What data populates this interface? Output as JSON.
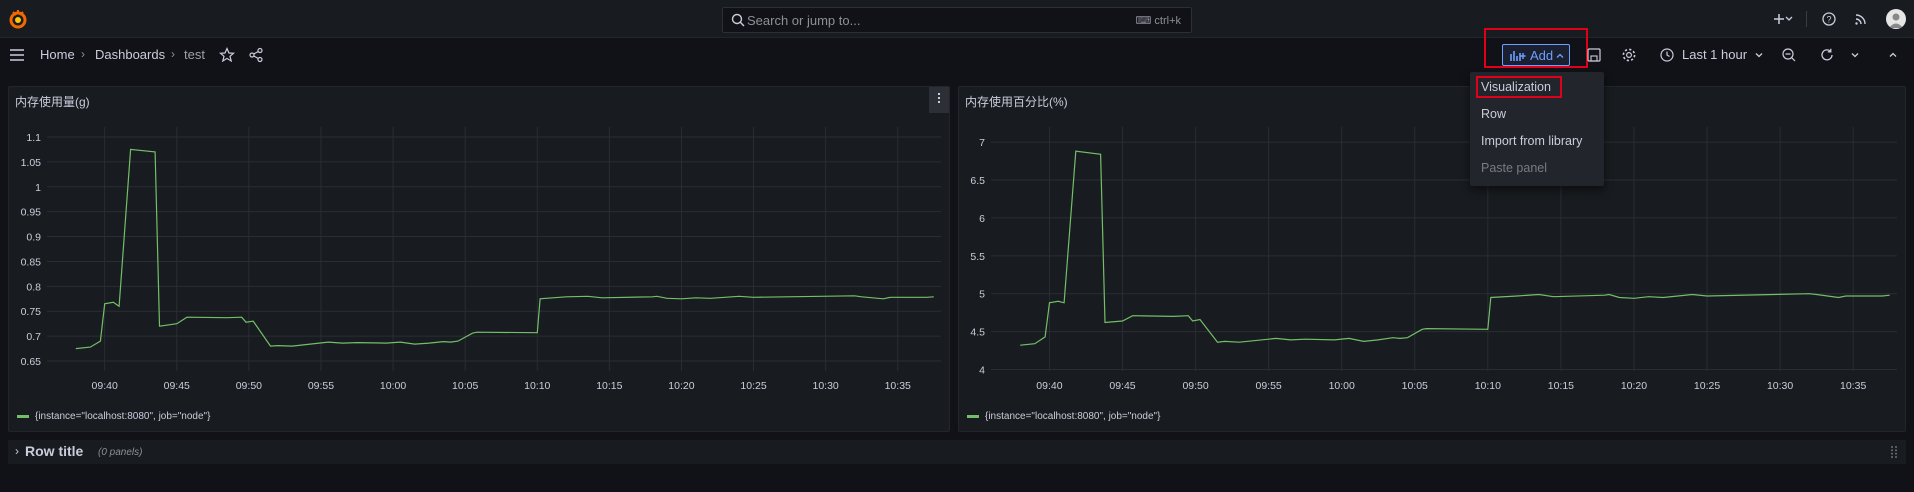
{
  "search": {
    "placeholder": "Search or jump to...",
    "shortcut": "ctrl+k"
  },
  "breadcrumb": {
    "home": "Home",
    "dashboards": "Dashboards",
    "current": "test"
  },
  "toolbar": {
    "add_label": "Add",
    "time_range": "Last 1 hour"
  },
  "add_menu": {
    "items": [
      "Visualization",
      "Row",
      "Import from library",
      "Paste panel"
    ]
  },
  "panels": [
    {
      "title": "内存使用量(g)",
      "legend": "{instance=\"localhost:8080\", job=\"node\"}",
      "chart_data": {
        "type": "line",
        "ylim": [
          0.63,
          1.12
        ],
        "yticks": [
          "1.1",
          "1.05",
          "1",
          "0.95",
          "0.9",
          "0.85",
          "0.8",
          "0.75",
          "0.7",
          "0.65"
        ],
        "ytick_values": [
          1.1,
          1.05,
          1.0,
          0.95,
          0.9,
          0.85,
          0.8,
          0.75,
          0.7,
          0.65
        ],
        "xticks": [
          "09:40",
          "09:45",
          "09:50",
          "09:55",
          "10:00",
          "10:05",
          "10:10",
          "10:15",
          "10:20",
          "10:25",
          "10:30",
          "10:35"
        ],
        "series": [
          {
            "color": "#73bf69",
            "x": [
              38,
              39,
              39.7,
              40,
              40.6,
              41,
              41.8,
              43.5,
              43.8,
              45,
              45.7,
              48.5,
              49.5,
              49.8,
              50.3,
              51.5,
              52,
              53,
              55.5,
              56.5,
              57.5,
              59.5,
              60.5,
              61.5,
              62.5,
              63.5,
              64,
              64.5,
              65.5,
              65.8,
              70,
              70.2,
              72,
              73.5,
              74.5,
              78,
              78.3,
              79,
              80,
              81,
              82,
              84,
              85,
              92,
              92.5,
              94,
              94.5,
              97,
              97.5
            ],
            "y": [
              0.675,
              0.678,
              0.69,
              0.765,
              0.768,
              0.76,
              1.075,
              1.07,
              0.72,
              0.725,
              0.738,
              0.737,
              0.738,
              0.728,
              0.73,
              0.68,
              0.681,
              0.68,
              0.688,
              0.686,
              0.687,
              0.686,
              0.688,
              0.684,
              0.686,
              0.689,
              0.688,
              0.69,
              0.706,
              0.708,
              0.707,
              0.775,
              0.779,
              0.78,
              0.777,
              0.779,
              0.78,
              0.776,
              0.775,
              0.777,
              0.776,
              0.78,
              0.778,
              0.781,
              0.779,
              0.775,
              0.778,
              0.778,
              0.779
            ]
          }
        ]
      }
    },
    {
      "title": "内存使用百分比(%)",
      "legend": "{instance=\"localhost:8080\", job=\"node\"}",
      "chart_data": {
        "type": "line",
        "ylim": [
          3.98,
          7.2
        ],
        "yticks": [
          "7",
          "6.5",
          "6",
          "5.5",
          "5",
          "4.5",
          "4"
        ],
        "ytick_values": [
          7,
          6.5,
          6,
          5.5,
          5,
          4.5,
          4
        ],
        "xticks": [
          "09:40",
          "09:45",
          "09:50",
          "09:55",
          "10:00",
          "10:05",
          "10:10",
          "10:15",
          "10:20",
          "10:25",
          "10:30",
          "10:35"
        ],
        "series": [
          {
            "color": "#73bf69",
            "x": [
              38,
              39,
              39.7,
              40,
              40.6,
              41,
              41.8,
              43.5,
              43.8,
              45,
              45.7,
              48.5,
              49.5,
              49.8,
              50.3,
              51.5,
              52,
              53,
              55.5,
              56.5,
              57.5,
              59.5,
              60.5,
              61.5,
              62.5,
              63.5,
              64,
              64.5,
              65.5,
              65.8,
              70,
              70.2,
              72,
              73.5,
              74.5,
              78,
              78.3,
              79,
              80,
              81,
              82,
              84,
              85,
              92,
              92.5,
              94,
              94.5,
              97,
              97.5
            ],
            "y": [
              4.32,
              4.34,
              4.43,
              4.88,
              4.9,
              4.88,
              6.88,
              6.84,
              4.62,
              4.64,
              4.71,
              4.7,
              4.71,
              4.64,
              4.66,
              4.36,
              4.37,
              4.36,
              4.41,
              4.39,
              4.4,
              4.39,
              4.41,
              4.37,
              4.39,
              4.42,
              4.41,
              4.42,
              4.53,
              4.54,
              4.53,
              4.95,
              4.97,
              4.99,
              4.96,
              4.98,
              4.99,
              4.95,
              4.94,
              4.96,
              4.95,
              4.99,
              4.97,
              5.0,
              4.99,
              4.95,
              4.97,
              4.97,
              4.98
            ]
          }
        ]
      }
    }
  ],
  "row": {
    "title": "Row title",
    "count": "(0 panels)"
  },
  "colors": {
    "accent": "#6e9fff",
    "series": "#73bf69",
    "highlight": "#e1001a"
  }
}
